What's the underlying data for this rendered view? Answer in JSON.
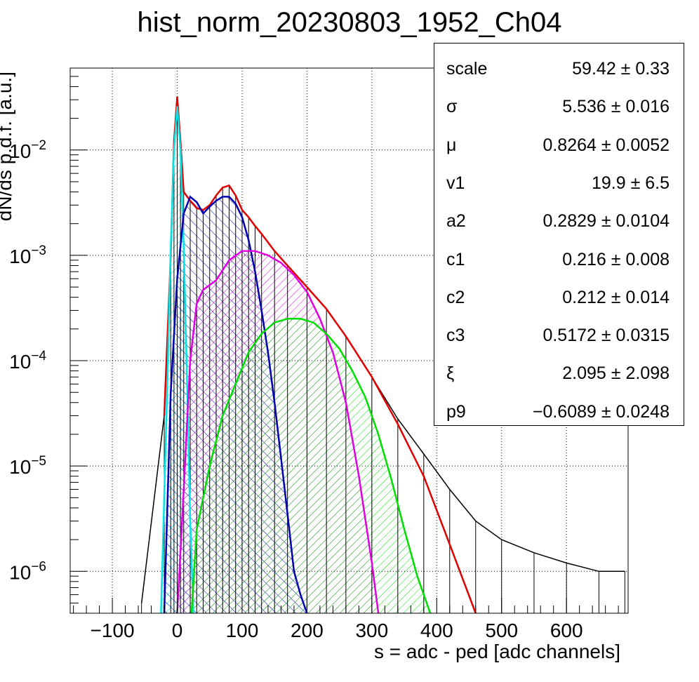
{
  "chart_data": {
    "type": "histogram-fit",
    "title": "hist_norm_20230803_1952_Ch04",
    "xlabel": "s = adc - ped [adc channels]",
    "ylabel": "dN/ds p.d.f. [a.u.]",
    "xlim": [
      -165,
      695
    ],
    "ylim": [
      4e-07,
      0.06
    ],
    "yscale": "log",
    "grid": true,
    "x_ticks": [
      "−100",
      "0",
      "100",
      "200",
      "300",
      "400",
      "500",
      "600"
    ],
    "y_ticks": [
      {
        "base": "10",
        "exp": "−2",
        "value": 0.01
      },
      {
        "base": "10",
        "exp": "−3",
        "value": 0.001
      },
      {
        "base": "10",
        "exp": "−4",
        "value": 0.0001
      },
      {
        "base": "10",
        "exp": "−5",
        "value": 1e-05
      },
      {
        "base": "10",
        "exp": "−6",
        "value": 1e-06
      }
    ],
    "series": [
      {
        "color": "#000000",
        "kind": "histogram",
        "x": [
          -55,
          -20,
          -10,
          -5,
          0,
          5,
          10,
          20,
          30,
          40,
          50,
          60,
          70,
          80,
          90,
          100,
          110,
          120,
          130,
          150,
          170,
          200,
          230,
          260,
          300,
          340,
          380,
          420,
          460,
          500,
          550,
          600,
          650,
          690
        ],
        "y": [
          5e-07,
          3e-05,
          0.001,
          0.012,
          0.032,
          0.012,
          0.004,
          0.0033,
          0.0028,
          0.0027,
          0.003,
          0.0037,
          0.0044,
          0.0046,
          0.0037,
          0.0027,
          0.0023,
          0.0019,
          0.0016,
          0.0011,
          0.0008,
          0.0005,
          0.00031,
          0.00017,
          7e-05,
          2.8e-05,
          1.3e-05,
          6e-06,
          3e-06,
          2e-06,
          1.5e-06,
          1.2e-06,
          1e-06,
          1e-06
        ]
      },
      {
        "color": "#e00000",
        "kind": "total-fit",
        "x": [
          -20,
          -10,
          -5,
          0,
          5,
          10,
          20,
          30,
          40,
          50,
          60,
          70,
          80,
          90,
          100,
          110,
          120,
          130,
          150,
          170,
          200,
          230,
          260,
          300,
          340,
          380,
          420,
          460
        ],
        "y": [
          3e-05,
          0.001,
          0.012,
          0.032,
          0.012,
          0.004,
          0.0033,
          0.0028,
          0.0027,
          0.003,
          0.0037,
          0.0044,
          0.0046,
          0.0037,
          0.0027,
          0.0023,
          0.0019,
          0.0016,
          0.0011,
          0.0008,
          0.0005,
          0.00031,
          0.00017,
          7e-05,
          2.5e-05,
          8e-06,
          1.8e-06,
          4e-07
        ]
      },
      {
        "color": "#00e5e5",
        "kind": "component",
        "hatch": "back",
        "x": [
          -25,
          -15,
          -10,
          -5,
          0,
          5,
          10,
          15,
          20,
          25
        ],
        "y": [
          4e-07,
          7e-05,
          0.0012,
          0.01,
          0.026,
          0.01,
          0.0012,
          7e-05,
          3e-06,
          4e-07
        ]
      },
      {
        "color": "#0000b0",
        "kind": "component",
        "hatch": "forward",
        "x": [
          -20,
          -10,
          0,
          10,
          20,
          30,
          40,
          50,
          60,
          70,
          80,
          90,
          100,
          110,
          120,
          130,
          140,
          150,
          160,
          170,
          180,
          190,
          200
        ],
        "y": [
          4e-07,
          5e-05,
          0.0006,
          0.0025,
          0.0036,
          0.0032,
          0.0025,
          0.0029,
          0.0033,
          0.0036,
          0.0036,
          0.0031,
          0.0023,
          0.0014,
          0.0007,
          0.0003,
          0.00012,
          4e-05,
          1.2e-05,
          3.5e-06,
          1e-06,
          6e-07,
          4e-07
        ]
      },
      {
        "color": "#e000e0",
        "kind": "component",
        "hatch": "back",
        "x": [
          0,
          10,
          20,
          30,
          40,
          60,
          80,
          100,
          120,
          140,
          160,
          180,
          200,
          220,
          240,
          260,
          280,
          300,
          310
        ],
        "y": [
          4e-07,
          6e-06,
          0.0001,
          0.00035,
          0.00047,
          0.00058,
          0.0009,
          0.0011,
          0.0011,
          0.001,
          0.00085,
          0.00065,
          0.00045,
          0.00025,
          0.00012,
          4e-05,
          8e-06,
          1.2e-06,
          4e-07
        ]
      },
      {
        "color": "#00dd00",
        "kind": "component",
        "hatch": "back",
        "x": [
          22,
          30,
          50,
          70,
          90,
          110,
          130,
          150,
          170,
          190,
          210,
          230,
          250,
          270,
          290,
          310,
          330,
          350,
          370,
          390
        ],
        "y": [
          4e-07,
          2.5e-06,
          1e-05,
          3e-05,
          6e-05,
          0.00012,
          0.00018,
          0.00023,
          0.00025,
          0.00025,
          0.00023,
          0.00018,
          0.00013,
          8e-05,
          4.5e-05,
          2e-05,
          7.5e-06,
          2.5e-06,
          9e-07,
          4e-07
        ]
      }
    ]
  },
  "stats": [
    {
      "name": "scale",
      "value": "59.42 ± 0.33"
    },
    {
      "name": "σ",
      "value": "5.536 ± 0.016"
    },
    {
      "name": "μ",
      "value": "0.8264 ± 0.0052"
    },
    {
      "name": "v1",
      "value": "19.9 ± 6.5"
    },
    {
      "name": "a2",
      "value": "0.2829 ± 0.0104"
    },
    {
      "name": "c1",
      "value": "0.216 ± 0.008"
    },
    {
      "name": "c2",
      "value": "0.212 ± 0.014"
    },
    {
      "name": "c3",
      "value": "0.5172 ± 0.0315"
    },
    {
      "name": "ξ",
      "value": "2.095 ± 2.098"
    },
    {
      "name": "p9",
      "value": "−0.6089 ± 0.0248"
    }
  ]
}
